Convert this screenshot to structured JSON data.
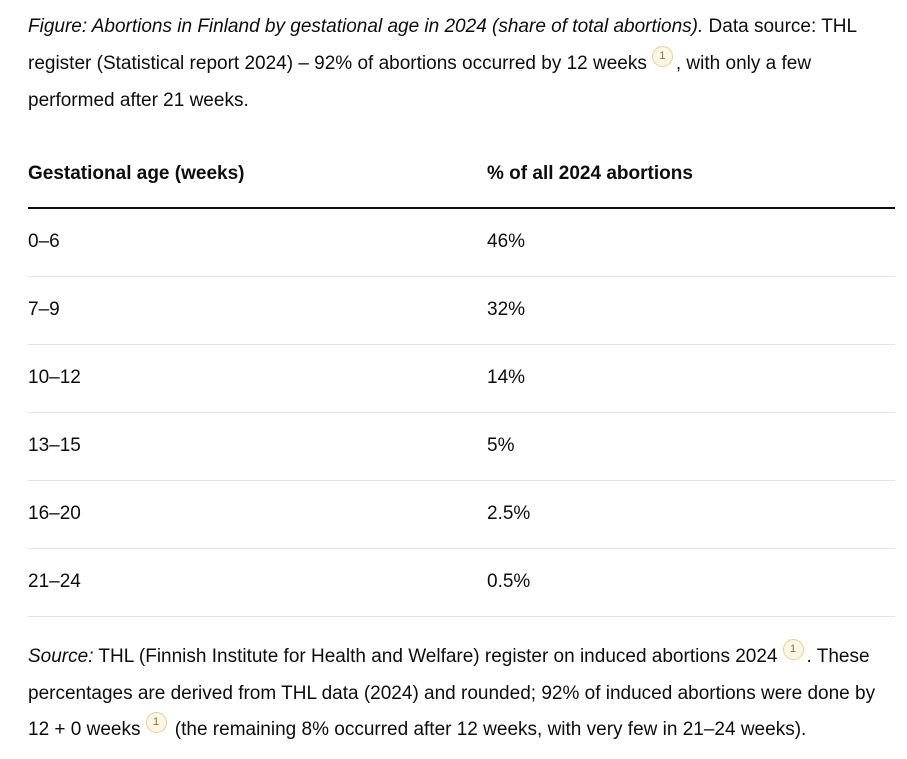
{
  "figure_caption": {
    "italic_lead": "Figure: Abortions in Finland by gestational age in 2024 (share of total abortions).",
    "text_before_citation": " Data source: THL register (Statistical report 2024) – 92% of abortions occurred by 12 weeks",
    "citation_label": "1",
    "text_after_citation": ", with only a few performed after 21 weeks."
  },
  "table": {
    "headers": {
      "age": "Gestational age (weeks)",
      "share": "% of all 2024 abortions"
    },
    "rows": [
      {
        "age": "0–6",
        "share": "46%"
      },
      {
        "age": "7–9",
        "share": "32%"
      },
      {
        "age": "10–12",
        "share": "14%"
      },
      {
        "age": "13–15",
        "share": "5%"
      },
      {
        "age": "16–20",
        "share": "2.5%"
      },
      {
        "age": "21–24",
        "share": "0.5%"
      }
    ]
  },
  "source_note": {
    "italic_lead": "Source:",
    "text_before_citation1": " THL (Finnish Institute for Health and Welfare) register on induced abortions 2024",
    "citation1_label": "1",
    "text_between_citations": ". These percentages are derived from THL data (2024) and rounded; 92% of induced abortions were done by 12 + 0 weeks",
    "citation2_label": "1",
    "text_after_citation2": " (the remaining 8% occurred after 12 weeks, with very few in 21–24 weeks)."
  },
  "colors": {
    "text": "#0d0d0d",
    "row_divider": "#e3e3e3",
    "header_border": "#0d0d0d",
    "citation_background": "#fdf6e4",
    "citation_border": "#eacf96",
    "citation_text": "#8d6f3a"
  }
}
